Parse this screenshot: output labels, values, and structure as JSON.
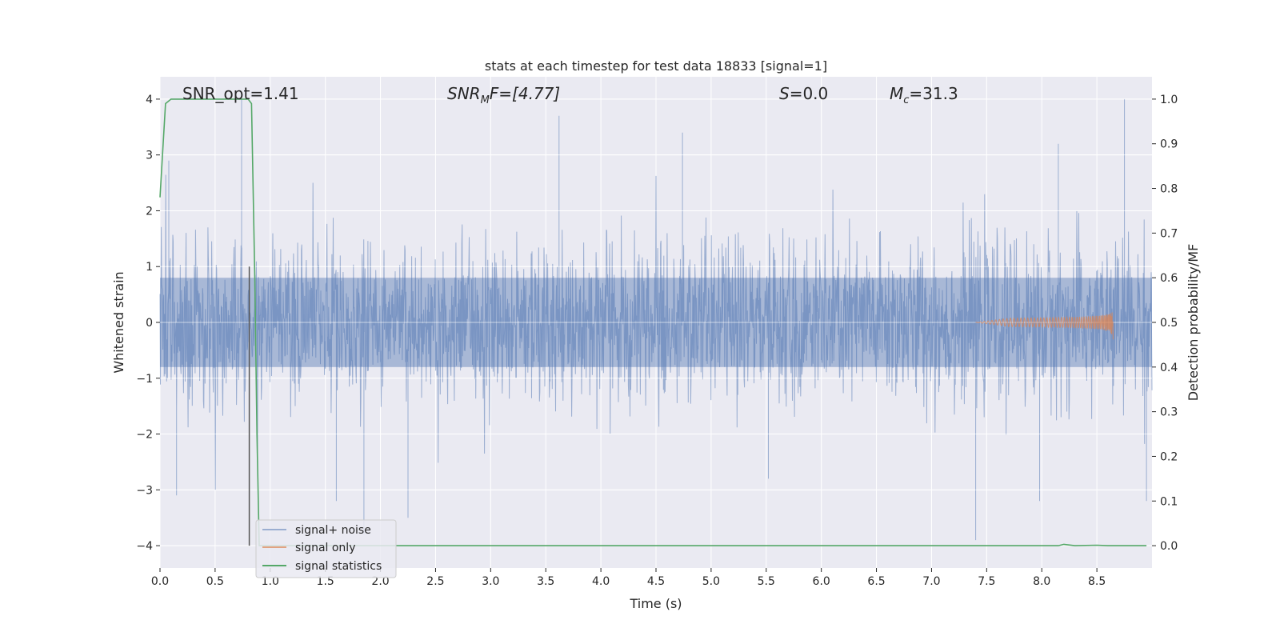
{
  "chart_data": {
    "type": "line",
    "title": "stats at each timestep for test data 18833 [signal=1]",
    "xlabel": "Time (s)",
    "ylabel_left": "Whitened strain",
    "ylabel_right": "Detection probability/MF",
    "xlim": [
      0.0,
      9.0
    ],
    "ylim_left": [
      -4.4,
      4.4
    ],
    "ylim_right": [
      -0.05,
      1.05
    ],
    "x_ticks": [
      "0.0",
      "0.5",
      "1.0",
      "1.5",
      "2.0",
      "2.5",
      "3.0",
      "3.5",
      "4.0",
      "4.5",
      "5.0",
      "5.5",
      "6.0",
      "6.5",
      "7.0",
      "7.5",
      "8.0",
      "8.5"
    ],
    "y_ticks_left": [
      "4",
      "3",
      "2",
      "1",
      "0",
      "−1",
      "−2",
      "−3",
      "−4"
    ],
    "y_ticks_right": [
      "1.0",
      "0.9",
      "0.8",
      "0.7",
      "0.6",
      "0.5",
      "0.4",
      "0.3",
      "0.2",
      "0.1",
      "0.0"
    ],
    "grid": true,
    "legend_position": "lower-left",
    "annotations": {
      "snr_opt": "SNR_opt=1.41",
      "snr_mf_prefix": "SNR",
      "snr_mf_sub": "M",
      "snr_mf_suffix": "F=[4.77]",
      "s_var": "S",
      "s_val": "=0.0",
      "mc_var": "M",
      "mc_sub": "c",
      "mc_val": "=31.3"
    },
    "marker_line": {
      "x": 0.81,
      "y_from": -4.0,
      "y_to": 1.0
    },
    "series": [
      {
        "name": "signal+ noise",
        "color": "#4c72b0",
        "axis": "left",
        "description": "whitened noisy strain, roughly within ±2 with spikes to ±4",
        "envelope": {
          "core_abs": 0.8,
          "dense_abs": 1.6,
          "peak_abs": 4.0
        },
        "spikes": [
          [
            0.74,
            4.0
          ],
          [
            0.08,
            2.9
          ],
          [
            3.62,
            3.7
          ],
          [
            4.74,
            3.4
          ],
          [
            8.15,
            3.2
          ],
          [
            8.75,
            4.0
          ],
          [
            7.4,
            -3.9
          ],
          [
            1.85,
            -3.8
          ],
          [
            2.25,
            -3.5
          ],
          [
            1.6,
            -3.2
          ],
          [
            0.15,
            -3.1
          ],
          [
            7.98,
            -3.2
          ],
          [
            5.52,
            -2.8
          ],
          [
            8.95,
            -3.2
          ]
        ]
      },
      {
        "name": "signal only",
        "color": "#dd8452",
        "axis": "left",
        "description": "chirp growing towards merger near t=8.65 s",
        "chirp": {
          "start": 7.4,
          "end": 8.65,
          "peak_amplitude": 0.3
        }
      },
      {
        "name": "signal statistics",
        "color": "#55a868",
        "axis": "right",
        "x": [
          0.0,
          0.05,
          0.1,
          0.2,
          0.3,
          0.5,
          0.7,
          0.8,
          0.83,
          0.86,
          0.88,
          0.9,
          1.0,
          2.0,
          3.0,
          4.0,
          5.0,
          6.0,
          7.0,
          8.0,
          8.15,
          8.2,
          8.3,
          8.5,
          8.6,
          8.7,
          8.95
        ],
        "y": [
          0.78,
          0.99,
          1.0,
          1.0,
          1.0,
          1.0,
          1.0,
          1.0,
          0.99,
          0.6,
          0.25,
          0.0,
          0.0,
          0.0,
          0.0,
          0.0,
          0.0,
          0.0,
          0.0,
          0.0,
          0.0,
          0.003,
          0.0,
          0.001,
          0.0,
          0.0,
          0.0
        ]
      }
    ]
  }
}
